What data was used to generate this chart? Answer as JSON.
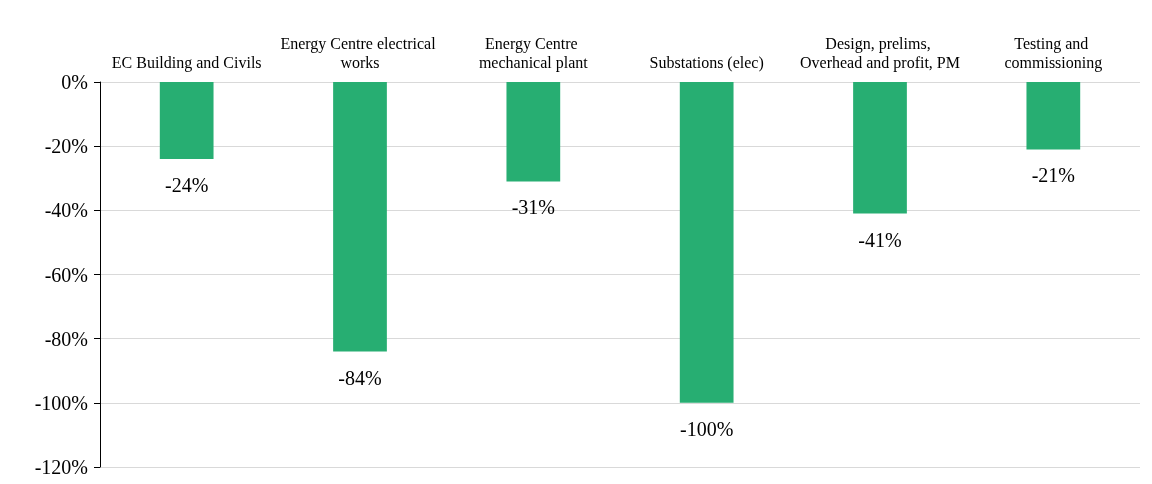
{
  "chart_data": {
    "type": "bar",
    "categories": [
      "EC Building and Civils",
      "Energy Centre electrical works",
      "Energy Centre mechanical plant",
      "Substations (elec)",
      "Design, prelims, Overhead and profit, PM",
      "Testing and commissioning"
    ],
    "values": [
      -24,
      -84,
      -31,
      -100,
      -41,
      -21
    ],
    "value_labels": [
      "-24%",
      "-84%",
      "-31%",
      "-100%",
      "-41%",
      "-21%"
    ],
    "color": "#27ae72",
    "ylim": [
      -120,
      0
    ],
    "yticks": [
      {
        "value": 0,
        "label": "0%"
      },
      {
        "value": -20,
        "label": "-20%"
      },
      {
        "value": -40,
        "label": "-40%"
      },
      {
        "value": -60,
        "label": "-60%"
      },
      {
        "value": -80,
        "label": "-80%"
      },
      {
        "value": -100,
        "label": "-100%"
      },
      {
        "value": -120,
        "label": "-120%"
      }
    ],
    "grid": "y"
  }
}
